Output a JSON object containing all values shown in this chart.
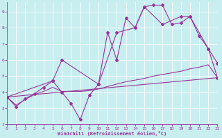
{
  "bg_color": "#c8eef0",
  "line_color": "#993399",
  "grid_color": "#aacccc",
  "xlabel": "Windchill (Refroidissement éolien,°C)",
  "xlim": [
    0,
    23
  ],
  "ylim": [
    2,
    9.6
  ],
  "yticks": [
    2,
    3,
    4,
    5,
    6,
    7,
    8,
    9
  ],
  "xticks": [
    0,
    1,
    2,
    3,
    4,
    5,
    6,
    7,
    8,
    9,
    10,
    11,
    12,
    13,
    14,
    15,
    16,
    17,
    18,
    19,
    20,
    21,
    22,
    23
  ],
  "series": [
    {
      "x": [
        0,
        1,
        2,
        3,
        4,
        5,
        6,
        7,
        8,
        9,
        10,
        11,
        12,
        13,
        14,
        15,
        16,
        17,
        18,
        19,
        20,
        21,
        22,
        23
      ],
      "y": [
        3.7,
        3.1,
        3.6,
        3.9,
        4.3,
        4.7,
        4.0,
        3.3,
        2.3,
        3.8,
        4.5,
        7.7,
        6.0,
        8.6,
        8.0,
        9.3,
        9.4,
        9.4,
        8.2,
        8.3,
        8.7,
        7.5,
        6.7,
        5.8
      ],
      "marker": true
    },
    {
      "x": [
        0,
        23
      ],
      "y": [
        3.7,
        4.9
      ],
      "marker": false
    },
    {
      "x": [
        0,
        1,
        2,
        3,
        4,
        5,
        6,
        7,
        8,
        9,
        10,
        11,
        12,
        13,
        14,
        15,
        16,
        17,
        18,
        19,
        20,
        21,
        22,
        23
      ],
      "y": [
        3.7,
        3.2,
        3.55,
        3.85,
        4.05,
        4.3,
        4.05,
        4.05,
        4.05,
        4.1,
        4.2,
        4.35,
        4.5,
        4.65,
        4.75,
        4.85,
        5.0,
        5.1,
        5.2,
        5.3,
        5.45,
        5.55,
        5.7,
        4.9
      ],
      "marker": false
    },
    {
      "x": [
        0,
        5,
        6,
        10,
        12,
        14,
        15,
        17,
        19,
        20,
        22,
        23
      ],
      "y": [
        3.7,
        4.7,
        6.0,
        4.5,
        7.7,
        8.0,
        9.3,
        8.2,
        8.7,
        8.7,
        6.7,
        4.9
      ],
      "marker": true
    }
  ]
}
